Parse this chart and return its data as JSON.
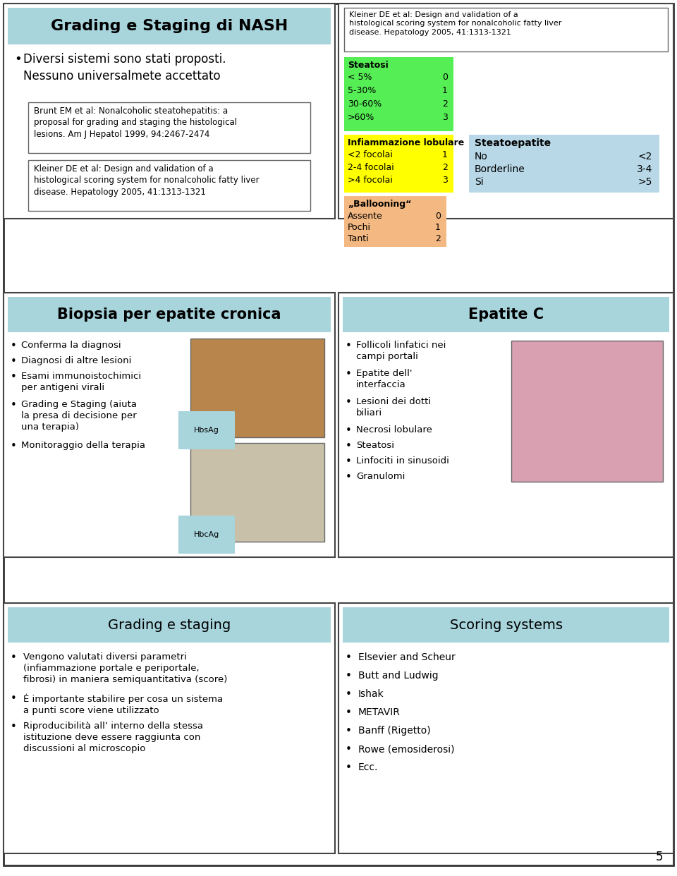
{
  "bg_color": "#ffffff",
  "light_blue_header": "#a8d4dc",
  "tan_header": "#c8dce0",
  "panel1": {
    "title": "Grading e Staging di NASH",
    "bullet": "Diversi sistemi sono stati proposti.\nNessuno universalmete accettato",
    "ref1": "Brunt EM et al: Nonalcoholic steatohepatitis: a\nproposal for grading and staging the histological\nlesions. Am J Hepatol 1999, 94:2467-2474",
    "ref2": "Kleiner DE et al: Design and validation of a\nhistological scoring system for nonalcoholic fatty liver\ndisease. Hepatology 2005, 41:1313-1321"
  },
  "panel2": {
    "ref_box": "Kleiner DE et al: Design and validation of a\nhistological scoring system for nonalcoholic fatty liver\ndisease. Hepatology 2005, 41:1313-1321",
    "steatosi_title": "Steatosi",
    "steatosi_rows": [
      [
        "< 5%",
        "0"
      ],
      [
        "5-30%",
        "1"
      ],
      [
        "30-60%",
        "2"
      ],
      [
        ">60%",
        "3"
      ]
    ],
    "steatosi_color": "#55ee55",
    "infiamm_title": "Infiammazione lobulare",
    "infiamm_rows": [
      [
        "<2 focolai",
        "1"
      ],
      [
        "2-4 focolai",
        "2"
      ],
      [
        ">4 focolai",
        "3"
      ]
    ],
    "infiamm_color": "#ffff00",
    "balloon_title": "„Ballooning“",
    "balloon_rows": [
      [
        "Assente",
        "0"
      ],
      [
        "Pochi",
        "1"
      ],
      [
        "Tanti",
        "2"
      ]
    ],
    "balloon_color": "#f4b982",
    "steat_title": "Steatoepatite",
    "steat_rows": [
      [
        "No",
        "<2"
      ],
      [
        "Borderline",
        "3-4"
      ],
      [
        "Si",
        ">5"
      ]
    ],
    "steat_color": "#b8d8e8"
  },
  "panel3": {
    "title": "Biopsia per epatite cronica",
    "bullets": [
      "Conferma la diagnosi",
      "Diagnosi di altre lesioni",
      "Esami immunoistochimici\nper antigeni virali",
      "Grading e Staging (aiuta\nla presa di decisione per\nuna terapia)",
      "Monitoraggio della terapia"
    ],
    "img1_label": "HbsAg",
    "img2_label": "HbcAg",
    "img1_color": "#b8864c",
    "img2_color": "#c8c0a8"
  },
  "panel4": {
    "title": "Epatite C",
    "bullets": [
      "Follicoli linfatici nei\ncampi portali",
      "Epatite dell'\ninterfaccia",
      "Lesioni dei dotti\nbiliari",
      "Necrosi lobulare",
      "Steatosi",
      "Linfociti in sinusoidi",
      "Granulomi"
    ],
    "img_color": "#d8a0b0"
  },
  "panel5": {
    "title": "Grading e staging",
    "bullets": [
      "Vengono valutati diversi parametri\n(infiammazione portale e periportale,\nfibrosi) in maniera semiquantitativa (score)",
      "É importante stabilire per cosa un sistema\na punti score viene utilizzato",
      "Riproducibilità all’ interno della stessa\nistituzione deve essere raggiunta con\ndiscussioni al microscopio"
    ]
  },
  "panel6": {
    "title": "Scoring systems",
    "bullets": [
      "Elsevier and Scheur",
      "Butt and Ludwig",
      "Ishak",
      "METAVIR",
      "Banff (Rigetto)",
      "Rowe (emosiderosi)",
      "Ecc."
    ]
  },
  "page_number": "5"
}
